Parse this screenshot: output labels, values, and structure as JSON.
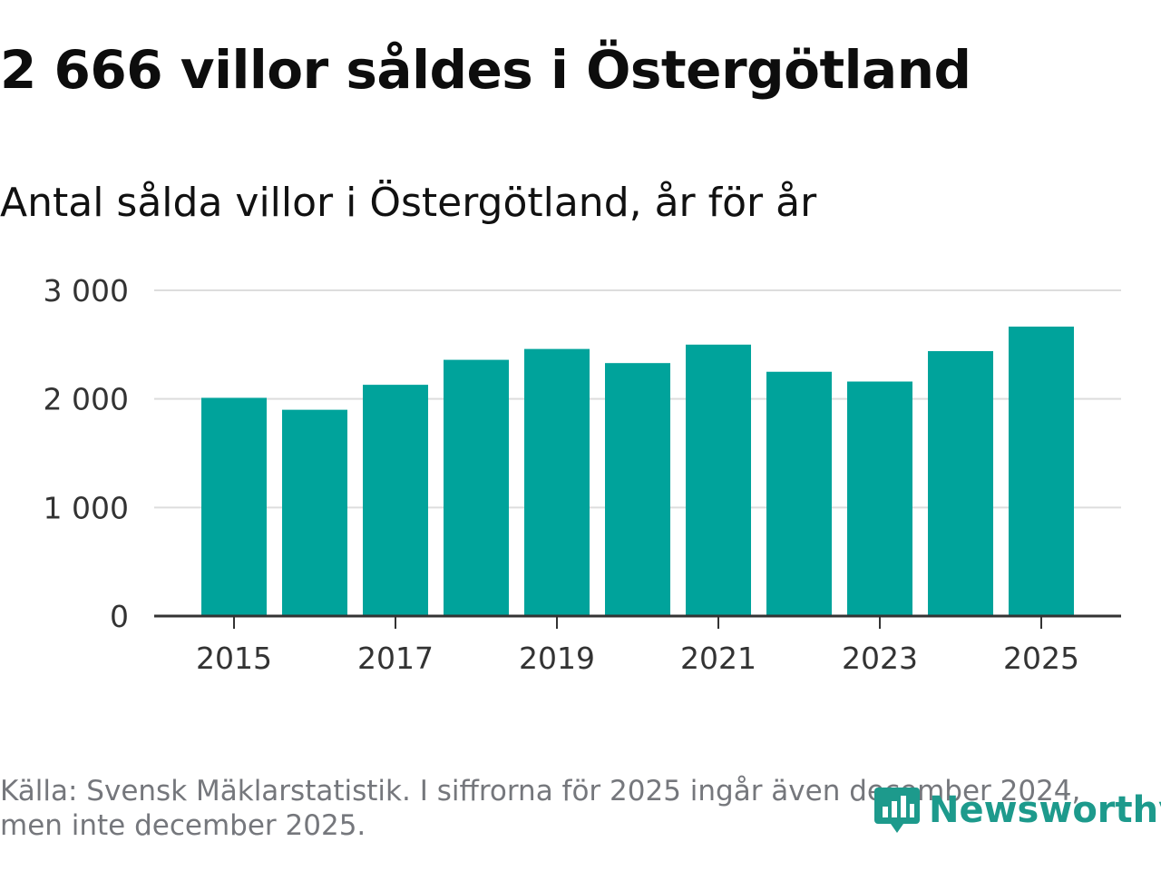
{
  "title": "2 666 villor såldes i Östergötland",
  "subtitle": "Antal sålda villor i Östergötland, år för år",
  "colors": {
    "bar": "#00a39b",
    "grid": "#dddddd",
    "axis": "#333333",
    "brand": "#1d9a8c"
  },
  "chart_data": {
    "type": "bar",
    "title": "Antal sålda villor i Östergötland, år för år",
    "xlabel": "",
    "ylabel": "",
    "categories": [
      "2015",
      "2016",
      "2017",
      "2018",
      "2019",
      "2020",
      "2021",
      "2022",
      "2023",
      "2024",
      "2025"
    ],
    "values": [
      2010,
      1900,
      2130,
      2360,
      2460,
      2330,
      2500,
      2250,
      2160,
      2440,
      2666
    ],
    "ylim": [
      0,
      3000
    ],
    "yticks": [
      0,
      1000,
      2000,
      3000
    ],
    "ytick_labels": [
      "0",
      "1 000",
      "2 000",
      "3 000"
    ],
    "xtick_labels": [
      "2015",
      "2017",
      "2019",
      "2021",
      "2023",
      "2025"
    ],
    "grid": true
  },
  "footer": {
    "source_line1": "Källa: Svensk Mäklarstatistik. I siffrorna för 2025 ingår även december 2024,",
    "source_line2": "men inte december 2025."
  },
  "brand": {
    "name": "Newsworthy",
    "icon": "newsworthy-logo-icon"
  }
}
